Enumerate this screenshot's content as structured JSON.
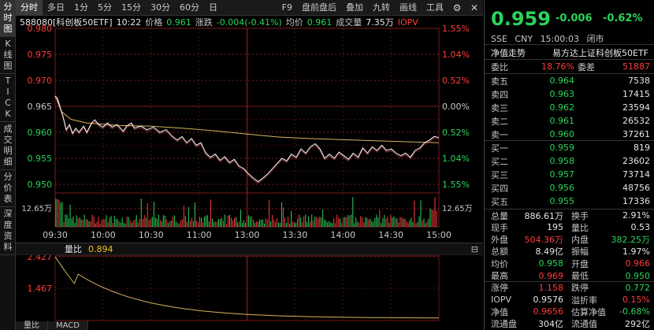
{
  "side_tabs": [
    "分时图",
    "K线图",
    "TICK",
    "成交明细",
    "分价表",
    "深度资料"
  ],
  "toolbar": {
    "periods": [
      "分时",
      "多日",
      "1分",
      "5分",
      "15分",
      "30分",
      "60分",
      "日"
    ],
    "active_period": "分时",
    "right_items": [
      "F9",
      "盘前盘后",
      "叠加",
      "九转",
      "画线",
      "工具"
    ]
  },
  "info": {
    "code": "588080[科创板50ETF]",
    "time": "10:22",
    "price_label": "价格",
    "price": "0.961",
    "change_label": "涨跌",
    "change": "-0.004(-0.41%)",
    "avg_label": "均价",
    "avg": "0.961",
    "volume_label": "成交量",
    "volume": "7.35万",
    "iopv": "IOPV"
  },
  "chart": {
    "price_ticks_left": [
      "0.980",
      "0.975",
      "0.970",
      "0.965",
      "0.960",
      "0.955",
      "0.950"
    ],
    "pct_ticks_right": [
      "1.55%",
      "1.04%",
      "0.52%",
      "0.00%",
      "0.52%",
      "1.04%",
      "1.55%"
    ],
    "vol_tick": "12.65万",
    "time_ticks": [
      "09:30",
      "10:00",
      "10:30",
      "11:00",
      "13:00",
      "13:30",
      "14:00",
      "14:30",
      "15:00"
    ]
  },
  "volratio": {
    "label": "量比",
    "value": "0.894",
    "ticks": [
      "2.427",
      "1.467"
    ]
  },
  "bottom_tabs": [
    "量比",
    "MACD"
  ],
  "quote": {
    "price": "0.959",
    "change": "-0.006",
    "change_pct": "-0.62%",
    "exchange": "SSE",
    "currency": "CNY",
    "time": "15:00:03",
    "status": "闭市",
    "nav_trend": "净值走势",
    "fund_name": "易方达上证科创板50ETF",
    "weibi_label": "委比",
    "weibi": "18.76%",
    "weicha_label": "委差",
    "weicha": "51887",
    "asks": [
      {
        "label": "卖五",
        "price": "0.964",
        "vol": "7538"
      },
      {
        "label": "卖四",
        "price": "0.963",
        "vol": "17415"
      },
      {
        "label": "卖三",
        "price": "0.962",
        "vol": "23594"
      },
      {
        "label": "卖二",
        "price": "0.961",
        "vol": "26532"
      },
      {
        "label": "卖一",
        "price": "0.960",
        "vol": "37261"
      }
    ],
    "bids": [
      {
        "label": "买一",
        "price": "0.959",
        "vol": "819"
      },
      {
        "label": "买二",
        "price": "0.958",
        "vol": "23602"
      },
      {
        "label": "买三",
        "price": "0.957",
        "vol": "73714"
      },
      {
        "label": "买四",
        "price": "0.956",
        "vol": "48756"
      },
      {
        "label": "买五",
        "price": "0.955",
        "vol": "17336"
      }
    ],
    "stats": [
      [
        {
          "label": "总量",
          "value": "886.61万",
          "cls": "white"
        },
        {
          "label": "换手",
          "value": "2.91%",
          "cls": "white"
        }
      ],
      [
        {
          "label": "现手",
          "value": "195",
          "cls": "white"
        },
        {
          "label": "量比",
          "value": "0.53",
          "cls": "white"
        }
      ],
      [
        {
          "label": "外盘",
          "value": "504.36万",
          "cls": "red"
        },
        {
          "label": "内盘",
          "value": "382.25万",
          "cls": "green"
        }
      ],
      [
        {
          "label": "总额",
          "value": "8.49亿",
          "cls": "white"
        },
        {
          "label": "振幅",
          "value": "1.97%",
          "cls": "white"
        }
      ],
      [
        {
          "label": "均价",
          "value": "0.958",
          "cls": "green"
        },
        {
          "label": "开盘",
          "value": "0.966",
          "cls": "red"
        }
      ],
      [
        {
          "label": "最高",
          "value": "0.969",
          "cls": "red"
        },
        {
          "label": "最低",
          "value": "0.950",
          "cls": "green"
        }
      ],
      [
        {
          "label": "涨停",
          "value": "1.158",
          "cls": "red"
        },
        {
          "label": "跌停",
          "value": "0.772",
          "cls": "green"
        }
      ],
      [
        {
          "label": "IOPV",
          "value": "0.9576",
          "cls": "white"
        },
        {
          "label": "溢折率",
          "value": "0.15%",
          "cls": "red"
        }
      ],
      [
        {
          "label": "净值",
          "value": "0.9656",
          "cls": "red"
        },
        {
          "label": "估算净值",
          "value": "-0.68%",
          "cls": "green"
        }
      ],
      [
        {
          "label": "流通盘",
          "value": "304亿",
          "cls": "white"
        },
        {
          "label": "流通值",
          "value": "292亿",
          "cls": "white"
        }
      ]
    ]
  },
  "colors": {
    "up": "#ff3b3b",
    "down": "#2bd35a",
    "price_line": "#ffffff",
    "avg_line": "#d8b25c"
  }
}
